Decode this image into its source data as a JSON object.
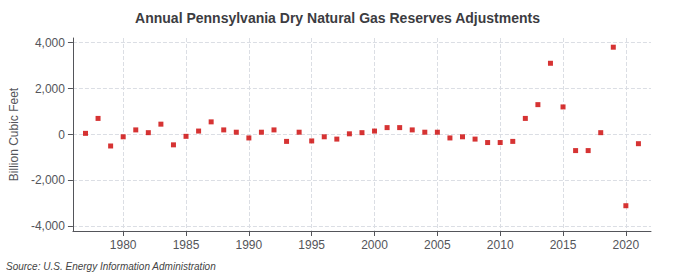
{
  "chart_data": {
    "type": "scatter",
    "title": "Annual Pennsylvania Dry Natural Gas Reserves Adjustments",
    "ylabel": "Billion Cubic Feet",
    "annotation": "Source: U.S. Energy Information Administration",
    "color": "#cc0000",
    "marker": "square",
    "grid": true,
    "xlim": [
      1976,
      2022
    ],
    "ylim": [
      -4200,
      4200
    ],
    "xticks": [
      1980,
      1985,
      1990,
      1995,
      2000,
      2005,
      2010,
      2015,
      2020
    ],
    "yticks": [
      {
        "value": -4000,
        "label": "-4,000"
      },
      {
        "value": -2000,
        "label": "-2,000"
      },
      0,
      {
        "value": 2000,
        "label": "2,000"
      },
      {
        "value": 4000,
        "label": "4,000"
      }
    ],
    "x": [
      1977,
      1978,
      1979,
      1980,
      1981,
      1982,
      1983,
      1984,
      1985,
      1986,
      1987,
      1988,
      1989,
      1990,
      1991,
      1992,
      1993,
      1994,
      1995,
      1996,
      1997,
      1998,
      1999,
      2000,
      2001,
      2002,
      2003,
      2004,
      2005,
      2006,
      2007,
      2008,
      2009,
      2010,
      2011,
      2012,
      2013,
      2014,
      2015,
      2016,
      2017,
      2018,
      2019,
      2020,
      2021
    ],
    "values": [
      50,
      700,
      -500,
      -100,
      200,
      80,
      450,
      -450,
      -80,
      150,
      550,
      200,
      100,
      -150,
      100,
      200,
      -300,
      100,
      -280,
      -100,
      -200,
      30,
      80,
      150,
      300,
      300,
      200,
      100,
      100,
      -150,
      -100,
      -200,
      -350,
      -350,
      -300,
      700,
      1300,
      3100,
      1200,
      -700,
      -700,
      80,
      3800,
      -3100,
      -400
    ]
  }
}
